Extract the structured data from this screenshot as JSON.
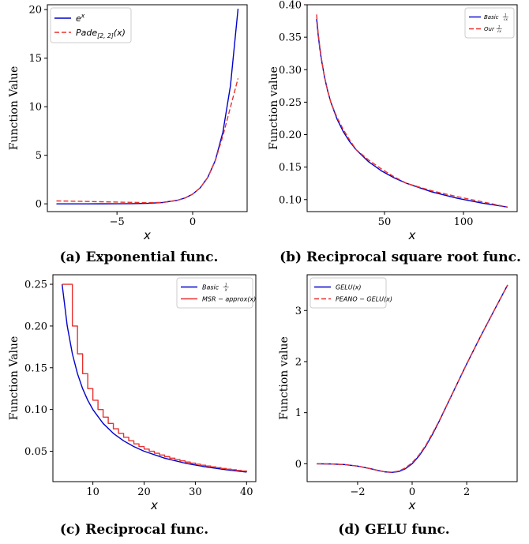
{
  "chart_data": [
    {
      "id": "a",
      "type": "line",
      "caption": "(a) Exponential func.",
      "xlabel": "x",
      "ylabel": "Function Value",
      "xlim": [
        -9.6,
        3.6
      ],
      "ylim": [
        -0.8,
        20.5
      ],
      "xticks": [
        -5,
        0
      ],
      "xtick_labels": [
        "−5",
        "0"
      ],
      "yticks": [
        0,
        5,
        10,
        15,
        20
      ],
      "ytick_labels": [
        "0",
        "5",
        "10",
        "15",
        "20"
      ],
      "legend_position": "top-left",
      "series": [
        {
          "name": "e^x",
          "legend_main": "e",
          "legend_sup": "x",
          "color": "#0000cc",
          "dash": "solid",
          "x": [
            -9,
            -8,
            -7,
            -6,
            -5,
            -4,
            -3,
            -2,
            -1,
            -0.5,
            0,
            0.5,
            1,
            1.5,
            2,
            2.5,
            3
          ],
          "y": [
            0.0001,
            0.0003,
            0.0009,
            0.0025,
            0.0067,
            0.0183,
            0.0498,
            0.1353,
            0.3679,
            0.6065,
            1,
            1.6487,
            2.7183,
            4.4817,
            7.3891,
            12.1825,
            20.0855
          ]
        },
        {
          "name": "Pade_{[2,2]}(x)",
          "legend_main": "Pade",
          "legend_sub": "[2, 2]",
          "legend_tail": "(x)",
          "color": "#e8312f",
          "dash": "6,3",
          "x": [
            -9,
            -8,
            -7,
            -6,
            -5,
            -4,
            -3,
            -2,
            -1,
            -0.5,
            0,
            0.5,
            1,
            1.5,
            2,
            2.5,
            3
          ],
          "y": [
            0.298,
            0.273,
            0.245,
            0.214,
            0.181,
            0.149,
            0.123,
            0.143,
            0.368,
            0.607,
            1,
            1.648,
            2.714,
            4.455,
            7.0,
            9.97,
            12.91
          ]
        }
      ]
    },
    {
      "id": "b",
      "type": "line",
      "caption": "(b) Reciprocal square root func.",
      "xlabel": "x",
      "ylabel": "Function value",
      "xlim": [
        1,
        134
      ],
      "ylim": [
        0.0815,
        0.4
      ],
      "xticks": [
        50,
        100
      ],
      "xtick_labels": [
        "50",
        "100"
      ],
      "yticks": [
        0.1,
        0.15,
        0.2,
        0.25,
        0.3,
        0.35,
        0.4
      ],
      "ytick_labels": [
        "0.10",
        "0.15",
        "0.20",
        "0.25",
        "0.30",
        "0.35",
        "0.40"
      ],
      "legend_position": "top-right",
      "series": [
        {
          "name": "Basic 1/√x",
          "legend_main": "Basic",
          "legend_frac_num": "1",
          "legend_frac_den": "√x",
          "color": "#0000cc",
          "dash": "solid",
          "x": [
            7,
            8,
            9,
            10,
            12,
            14,
            16,
            20,
            24,
            28,
            32,
            40,
            48,
            56,
            64,
            80,
            96,
            112,
            128
          ],
          "y": [
            0.378,
            0.3536,
            0.3333,
            0.3162,
            0.2887,
            0.2673,
            0.25,
            0.2236,
            0.2041,
            0.189,
            0.1768,
            0.1581,
            0.1443,
            0.1336,
            0.125,
            0.1118,
            0.1021,
            0.0945,
            0.0884
          ]
        },
        {
          "name": "Our 1/√x",
          "legend_main": "Our",
          "legend_frac_num": "1",
          "legend_frac_den": "√x",
          "color": "#e8312f",
          "dash": "6,3",
          "x": [
            7,
            8,
            9,
            10,
            12,
            14,
            16,
            20,
            24,
            28,
            32,
            40,
            48,
            56,
            64,
            80,
            96,
            112,
            128
          ],
          "y": [
            0.385,
            0.356,
            0.336,
            0.318,
            0.289,
            0.268,
            0.25,
            0.226,
            0.2075,
            0.1915,
            0.177,
            0.1608,
            0.1472,
            0.1352,
            0.125,
            0.1135,
            0.1045,
            0.0965,
            0.0884
          ]
        }
      ]
    },
    {
      "id": "c",
      "type": "line",
      "caption": "(c) Reciprocal func.",
      "xlabel": "x",
      "ylabel": "Function Value",
      "xlim": [
        2.2,
        41.8
      ],
      "ylim": [
        0.0136,
        0.2614
      ],
      "xticks": [
        10,
        20,
        30,
        40
      ],
      "xtick_labels": [
        "10",
        "20",
        "30",
        "40"
      ],
      "yticks": [
        0.05,
        0.1,
        0.15,
        0.2,
        0.25
      ],
      "ytick_labels": [
        "0.05",
        "0.10",
        "0.15",
        "0.20",
        "0.25"
      ],
      "legend_position": "top-right",
      "series": [
        {
          "name": "Basic 1/x",
          "legend_main": "Basic",
          "legend_frac_num": "1",
          "legend_frac_den": "x",
          "color": "#0000cc",
          "dash": "solid",
          "step": false,
          "x": [
            4,
            5,
            6,
            7,
            8,
            9,
            10,
            12,
            14,
            16,
            18,
            20,
            24,
            28,
            32,
            36,
            40
          ],
          "y": [
            0.25,
            0.2,
            0.1667,
            0.1429,
            0.125,
            0.1111,
            0.1,
            0.0833,
            0.0714,
            0.0625,
            0.0556,
            0.05,
            0.0417,
            0.0357,
            0.0313,
            0.0278,
            0.025
          ]
        },
        {
          "name": "MSR − approx(x)",
          "legend_main": "MSR − approx(x)",
          "color": "#e8312f",
          "dash": "solid",
          "step": true,
          "x": [
            4,
            5,
            6,
            7,
            8,
            9,
            10,
            11,
            12,
            13,
            14,
            15,
            16,
            17,
            18,
            19,
            20,
            21,
            22,
            23,
            24,
            25,
            26,
            27,
            28,
            29,
            30,
            31,
            32,
            33,
            34,
            35,
            36,
            37,
            38,
            39,
            40
          ],
          "y": [
            0.25,
            0.25,
            0.2,
            0.1667,
            0.1429,
            0.125,
            0.1111,
            0.1,
            0.0909,
            0.0833,
            0.0769,
            0.0714,
            0.0667,
            0.0625,
            0.0588,
            0.0556,
            0.0526,
            0.05,
            0.0476,
            0.0455,
            0.0435,
            0.0417,
            0.04,
            0.0385,
            0.037,
            0.0357,
            0.0345,
            0.0333,
            0.0323,
            0.0313,
            0.0303,
            0.0294,
            0.0286,
            0.0278,
            0.027,
            0.0263,
            0.025
          ]
        }
      ]
    },
    {
      "id": "d",
      "type": "line",
      "caption": "(d) GELU func.",
      "xlabel": "x",
      "ylabel": "Function value",
      "xlim": [
        -3.85,
        3.85
      ],
      "ylim": [
        -0.35,
        3.7
      ],
      "xticks": [
        -2,
        0,
        2
      ],
      "xtick_labels": [
        "−2",
        "0",
        "2"
      ],
      "yticks": [
        0,
        1,
        2,
        3
      ],
      "ytick_labels": [
        "0",
        "1",
        "2",
        "3"
      ],
      "legend_position": "top-left",
      "series": [
        {
          "name": "GELU(x)",
          "legend_main": "GELU(x)",
          "color": "#0000cc",
          "dash": "solid",
          "x": [
            -3.5,
            -3,
            -2.5,
            -2,
            -1.5,
            -1.25,
            -1,
            -0.75,
            -0.5,
            -0.25,
            0,
            0.25,
            0.5,
            0.75,
            1,
            1.5,
            2,
            2.5,
            3,
            3.5
          ],
          "y": [
            -0.0008,
            -0.004,
            -0.0155,
            -0.0455,
            -0.1002,
            -0.132,
            -0.1587,
            -0.17,
            -0.1543,
            -0.0987,
            0,
            0.1513,
            0.3457,
            0.5799,
            0.8413,
            1.3998,
            1.9545,
            2.4845,
            2.996,
            3.4992
          ]
        },
        {
          "name": "PEANO − GELU(x)",
          "legend_main": "PEANO − GELU(x)",
          "color": "#e8312f",
          "dash": "6,3",
          "x": [
            -3.5,
            -3,
            -2.5,
            -2,
            -1.5,
            -1.25,
            -1,
            -0.75,
            -0.5,
            -0.25,
            0,
            0.25,
            0.5,
            0.75,
            1,
            1.5,
            2,
            2.5,
            3,
            3.5
          ],
          "y": [
            -0.0008,
            -0.004,
            -0.0155,
            -0.0455,
            -0.1,
            -0.13,
            -0.158,
            -0.166,
            -0.145,
            -0.082,
            0.02,
            0.17,
            0.36,
            0.6,
            0.85,
            1.4,
            1.955,
            2.485,
            2.996,
            3.499
          ]
        }
      ]
    }
  ]
}
